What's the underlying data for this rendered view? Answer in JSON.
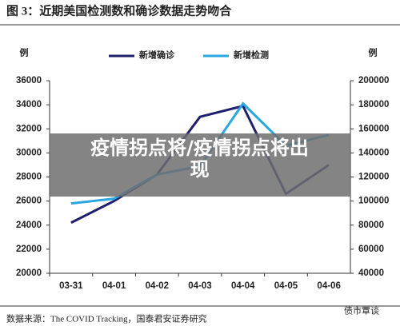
{
  "chart_data": {
    "type": "line",
    "title": "图 3：近期美国检测数和确诊数据走势吻合",
    "y_label": "例",
    "y2_label": "例",
    "categories": [
      "03-31",
      "04-01",
      "04-02",
      "04-03",
      "04-04",
      "04-05",
      "04-06"
    ],
    "series": [
      {
        "name": "新增确诊",
        "color": "#1f1f6e",
        "values": [
          24200,
          26000,
          28200,
          33000,
          33900,
          26600,
          29000
        ]
      },
      {
        "name": "新增检测",
        "color": "#2aa7e0",
        "axis": "y2",
        "values": [
          98000,
          102000,
          122000,
          129000,
          181000,
          146000,
          155000
        ]
      }
    ],
    "ylim": [
      20000,
      36000
    ],
    "yticks": [
      20000,
      22000,
      24000,
      26000,
      28000,
      30000,
      32000,
      34000,
      36000
    ],
    "y2lim": [
      40000,
      200000
    ],
    "y2ticks": [
      40000,
      60000,
      80000,
      100000,
      120000,
      140000,
      160000,
      180000,
      200000
    ],
    "source": "数据来源：The COVID Tracking，国泰君安证券研究",
    "watermark": "债市覃谈",
    "overlay_text": "疫情拐点将/疫情拐点将出现"
  }
}
